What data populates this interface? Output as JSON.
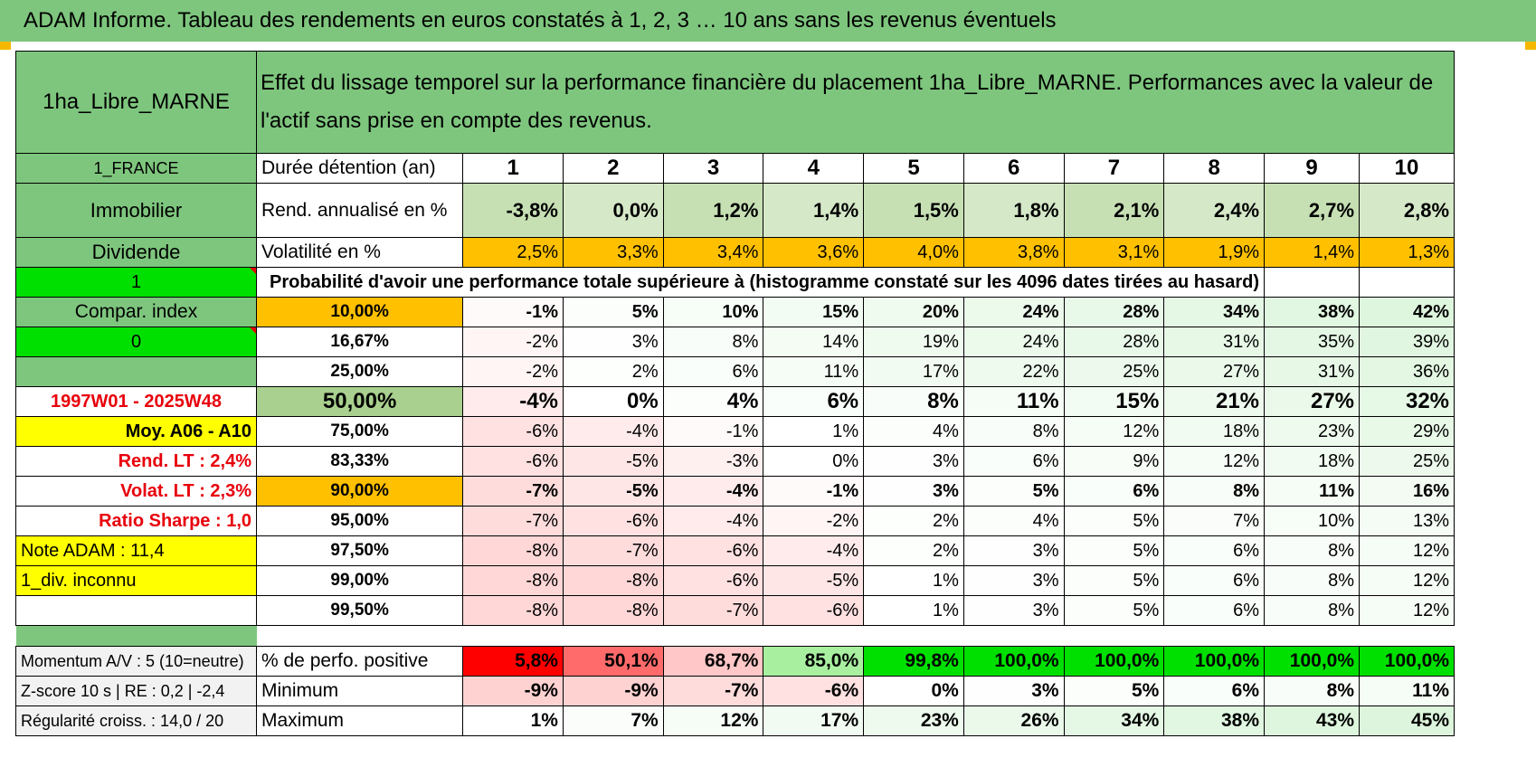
{
  "title": "ADAM Informe. Tableau des rendements en euros constatés à 1, 2, 3 … 10 ans sans les revenus éventuels",
  "header": {
    "asset": "1ha_Libre_MARNE",
    "description": "Effet du lissage temporel sur la performance financière du placement 1ha_Libre_MARNE. Performances avec la valeur de l'actif sans prise en compte des revenus."
  },
  "sidebar": {
    "country": "1_FRANCE",
    "category": "Immobilier",
    "type": "Dividende",
    "selector_value": "1",
    "compar_index": "Compar. index",
    "compar_value": "0",
    "period": "1997W01 - 2025W48",
    "moy": "Moy. A06 - A10",
    "rend_lt": "Rend. LT :    2,4%",
    "volat_lt": "Volat. LT :    2,3%",
    "sharpe": "Ratio Sharpe :    1,0",
    "note": "Note ADAM : 11,4",
    "div": "1_div. inconnu",
    "momentum": "Momentum A/V : 5 (10=neutre)",
    "zscore": "Z-score 10 s | RE : 0,2 | -2,4",
    "regularite": "Régularité croiss. : 14,0 / 20"
  },
  "table": {
    "duration_label": "Durée détention (an)",
    "years": [
      "1",
      "2",
      "3",
      "4",
      "5",
      "6",
      "7",
      "8",
      "9",
      "10"
    ],
    "rend_label": "Rend. annualisé en %",
    "rend": [
      "-3,8%",
      "0,0%",
      "1,2%",
      "1,4%",
      "1,5%",
      "1,8%",
      "2,1%",
      "2,4%",
      "2,7%",
      "2,8%"
    ],
    "vol_label": "Volatilité en %",
    "vol": [
      "2,5%",
      "3,3%",
      "3,4%",
      "3,6%",
      "4,0%",
      "3,8%",
      "3,1%",
      "1,9%",
      "1,4%",
      "1,3%"
    ],
    "prob_label": "Probabilité d'avoir une performance totale supérieure à (histogramme constaté sur les 4096 dates tirées au hasard)",
    "quantiles": [
      {
        "q": "10,00%",
        "values": [
          "-1%",
          "5%",
          "10%",
          "15%",
          "20%",
          "24%",
          "28%",
          "34%",
          "38%",
          "42%"
        ]
      },
      {
        "q": "16,67%",
        "values": [
          "-2%",
          "3%",
          "8%",
          "14%",
          "19%",
          "24%",
          "28%",
          "31%",
          "35%",
          "39%"
        ]
      },
      {
        "q": "25,00%",
        "values": [
          "-2%",
          "2%",
          "6%",
          "11%",
          "17%",
          "22%",
          "25%",
          "27%",
          "31%",
          "36%"
        ]
      },
      {
        "q": "50,00%",
        "values": [
          "-4%",
          "0%",
          "4%",
          "6%",
          "8%",
          "11%",
          "15%",
          "21%",
          "27%",
          "32%"
        ]
      },
      {
        "q": "75,00%",
        "values": [
          "-6%",
          "-4%",
          "-1%",
          "1%",
          "4%",
          "8%",
          "12%",
          "18%",
          "23%",
          "29%"
        ]
      },
      {
        "q": "83,33%",
        "values": [
          "-6%",
          "-5%",
          "-3%",
          "0%",
          "3%",
          "6%",
          "9%",
          "12%",
          "18%",
          "25%"
        ]
      },
      {
        "q": "90,00%",
        "values": [
          "-7%",
          "-5%",
          "-4%",
          "-1%",
          "3%",
          "5%",
          "6%",
          "8%",
          "11%",
          "16%"
        ]
      },
      {
        "q": "95,00%",
        "values": [
          "-7%",
          "-6%",
          "-4%",
          "-2%",
          "2%",
          "4%",
          "5%",
          "7%",
          "10%",
          "13%"
        ]
      },
      {
        "q": "97,50%",
        "values": [
          "-8%",
          "-7%",
          "-6%",
          "-4%",
          "2%",
          "3%",
          "5%",
          "6%",
          "8%",
          "12%"
        ]
      },
      {
        "q": "99,00%",
        "values": [
          "-8%",
          "-8%",
          "-6%",
          "-5%",
          "1%",
          "3%",
          "5%",
          "6%",
          "8%",
          "12%"
        ]
      },
      {
        "q": "99,50%",
        "values": [
          "-8%",
          "-8%",
          "-7%",
          "-6%",
          "1%",
          "3%",
          "5%",
          "6%",
          "8%",
          "12%"
        ]
      }
    ],
    "positive_label": "% de perfo. positive",
    "positive": [
      "5,8%",
      "50,1%",
      "68,7%",
      "85,0%",
      "99,8%",
      "100,0%",
      "100,0%",
      "100,0%",
      "100,0%",
      "100,0%"
    ],
    "min_label": "Minimum",
    "min": [
      "-9%",
      "-9%",
      "-7%",
      "-6%",
      "0%",
      "3%",
      "5%",
      "6%",
      "8%",
      "11%"
    ],
    "max_label": "Maximum",
    "max": [
      "1%",
      "7%",
      "12%",
      "17%",
      "23%",
      "26%",
      "34%",
      "38%",
      "43%",
      "45%"
    ]
  },
  "colors": {
    "header_green": "#7ec67e",
    "bright_green": "#00e000",
    "orange": "#ffc000",
    "yellow": "#ffff00",
    "red_text": "#e8000b",
    "median_green": "#a9d08e"
  }
}
